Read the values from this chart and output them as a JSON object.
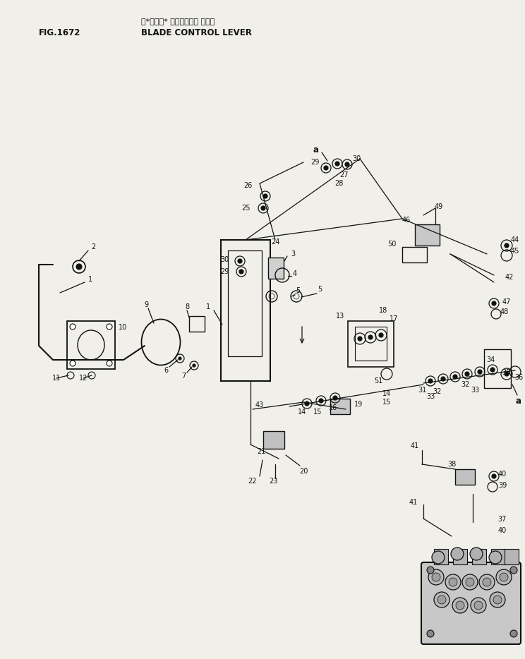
{
  "title_japanese": "ブレード゜ コントロール レバー―",
  "title_english": "BLADE CONTROL LEVER",
  "fig_number": "FIG.1672",
  "bg_color": "#f0efea",
  "line_color": "#111111",
  "text_color": "#111111",
  "label_fontsize": 7.0,
  "header_fontsize": 8.5
}
